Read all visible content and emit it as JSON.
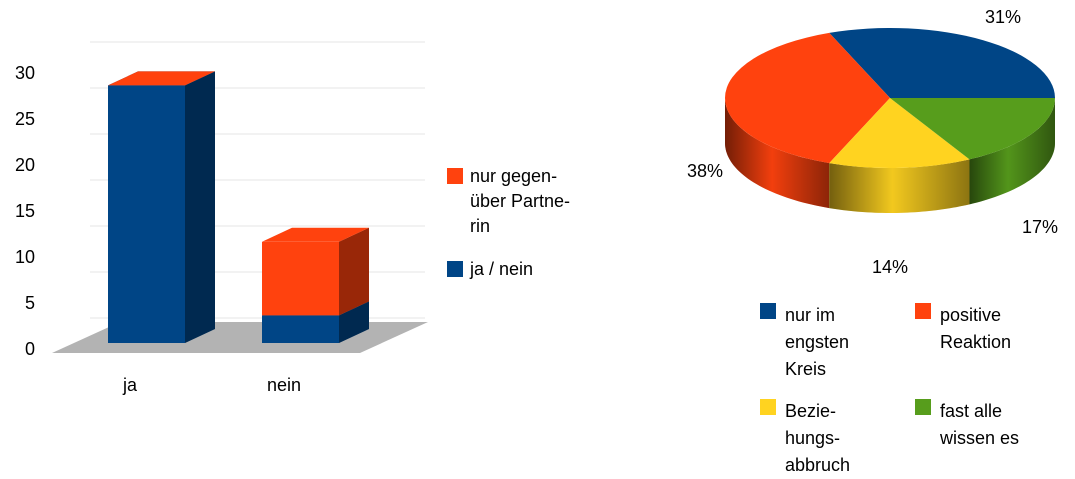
{
  "chart_data": [
    {
      "type": "bar3d",
      "categories": [
        "ja",
        "nein"
      ],
      "series": [
        {
          "name": "ja / nein",
          "color": "#004586",
          "values": [
            28,
            3
          ]
        },
        {
          "name": "nur gegen-\nüber Partne-\nrin",
          "color": "#ff420e",
          "values": [
            0,
            8
          ]
        }
      ],
      "ylim": [
        0,
        30
      ],
      "yticks": [
        0,
        5,
        10,
        15,
        20,
        25,
        30
      ],
      "grid": true,
      "legend": "right"
    },
    {
      "type": "pie3d",
      "categories": [
        "nur im\nengsten\nKreis",
        "positive\nReaktion",
        "Bezie-\nhungs-\nabbruch",
        "fast alle\nwissen es"
      ],
      "values": [
        31,
        38,
        14,
        17
      ],
      "value_labels": [
        "31%",
        "38%",
        "14%",
        "17%"
      ],
      "colors": [
        "#004586",
        "#ff420e",
        "#ffd320",
        "#579d1c"
      ],
      "legend": "bottom"
    }
  ]
}
